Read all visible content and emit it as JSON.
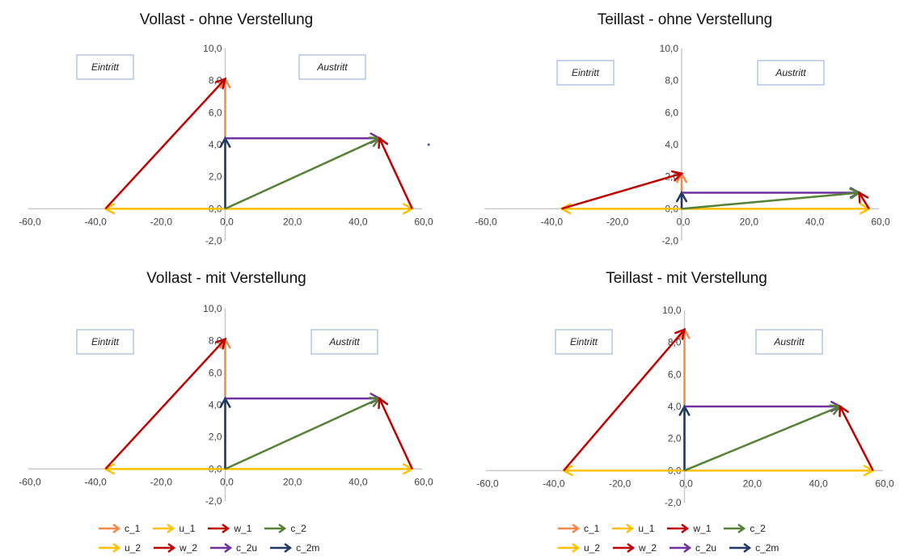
{
  "legend_items": [
    {
      "name": "c_1",
      "color": "#f4894b"
    },
    {
      "name": "u_1",
      "color": "#ffc000"
    },
    {
      "name": "w_1",
      "color": "#c00000"
    },
    {
      "name": "c_2",
      "color": "#548235"
    },
    {
      "name": "u_2",
      "color": "#ffc000"
    },
    {
      "name": "w_2",
      "color": "#c00000"
    },
    {
      "name": "c_2u",
      "color": "#7030a0"
    },
    {
      "name": "c_2m",
      "color": "#203864"
    }
  ],
  "chart_data": [
    {
      "type": "line",
      "title": "Vollast - ohne Verstellung",
      "xlim": [
        -60,
        60
      ],
      "ylim": [
        -2,
        10
      ],
      "xticks": [
        "-60,0",
        "-40,0",
        "-20,0",
        "0,0",
        "20,0",
        "40,0",
        "60,0"
      ],
      "yticks": [
        "-2,0",
        "0,0",
        "2,0",
        "4,0",
        "6,0",
        "8,0",
        "10,0"
      ],
      "annotations": [
        "Eintritt",
        "Austritt"
      ],
      "extra_point": [
        62,
        4
      ],
      "vectors": [
        {
          "name": "c_1",
          "from": [
            0,
            0
          ],
          "to": [
            0,
            8.1
          ]
        },
        {
          "name": "u_1",
          "from": [
            0,
            0
          ],
          "to": [
            -36.5,
            0
          ]
        },
        {
          "name": "w_1",
          "from": [
            -36.5,
            0
          ],
          "to": [
            0,
            8.1
          ]
        },
        {
          "name": "u_2",
          "from": [
            0,
            0
          ],
          "to": [
            57,
            0
          ]
        },
        {
          "name": "c_2m",
          "from": [
            0,
            0
          ],
          "to": [
            0,
            4.4
          ]
        },
        {
          "name": "c_2u",
          "from": [
            0,
            4.4
          ],
          "to": [
            47,
            4.4
          ]
        },
        {
          "name": "c_2",
          "from": [
            0,
            0
          ],
          "to": [
            47,
            4.4
          ]
        },
        {
          "name": "w_2",
          "from": [
            57,
            0
          ],
          "to": [
            47,
            4.4
          ]
        }
      ]
    },
    {
      "type": "line",
      "title": "Teillast - ohne Verstellung",
      "xlim": [
        -60,
        60
      ],
      "ylim": [
        -2,
        10
      ],
      "xticks": [
        "-60,0",
        "-40,0",
        "-20,0",
        "0,0",
        "20,0",
        "40,0",
        "60,0"
      ],
      "yticks": [
        "-2,0",
        "0,0",
        "2,0",
        "4,0",
        "6,0",
        "8,0",
        "10,0"
      ],
      "annotations": [
        "Eintritt",
        "Austritt"
      ],
      "vectors": [
        {
          "name": "c_1",
          "from": [
            0,
            0
          ],
          "to": [
            0,
            2.2
          ]
        },
        {
          "name": "u_1",
          "from": [
            0,
            0
          ],
          "to": [
            -36.5,
            0
          ]
        },
        {
          "name": "w_1",
          "from": [
            -36.5,
            0
          ],
          "to": [
            0,
            2.2
          ]
        },
        {
          "name": "u_2",
          "from": [
            0,
            0
          ],
          "to": [
            57,
            0
          ]
        },
        {
          "name": "c_2m",
          "from": [
            0,
            0
          ],
          "to": [
            0,
            1.0
          ]
        },
        {
          "name": "c_2u",
          "from": [
            0,
            1.0
          ],
          "to": [
            54,
            1.0
          ]
        },
        {
          "name": "c_2",
          "from": [
            0,
            0
          ],
          "to": [
            54,
            1.0
          ]
        },
        {
          "name": "w_2",
          "from": [
            57,
            0
          ],
          "to": [
            54,
            1.0
          ]
        }
      ]
    },
    {
      "type": "line",
      "title": "Vollast - mit Verstellung",
      "xlim": [
        -60,
        60
      ],
      "ylim": [
        -2,
        10
      ],
      "xticks": [
        "-60,0",
        "-40,0",
        "-20,0",
        "0,0",
        "20,0",
        "40,0",
        "60,0"
      ],
      "yticks": [
        "-2,0",
        "0,0",
        "2,0",
        "4,0",
        "6,0",
        "8,0",
        "10,0"
      ],
      "annotations": [
        "Eintritt",
        "Austritt"
      ],
      "vectors": [
        {
          "name": "c_1",
          "from": [
            0,
            0
          ],
          "to": [
            0,
            8.1
          ]
        },
        {
          "name": "u_1",
          "from": [
            0,
            0
          ],
          "to": [
            -36.5,
            0
          ]
        },
        {
          "name": "w_1",
          "from": [
            -36.5,
            0
          ],
          "to": [
            0,
            8.1
          ]
        },
        {
          "name": "u_2",
          "from": [
            0,
            0
          ],
          "to": [
            57,
            0
          ]
        },
        {
          "name": "c_2m",
          "from": [
            0,
            0
          ],
          "to": [
            0,
            4.4
          ]
        },
        {
          "name": "c_2u",
          "from": [
            0,
            4.4
          ],
          "to": [
            47,
            4.4
          ]
        },
        {
          "name": "c_2",
          "from": [
            0,
            0
          ],
          "to": [
            47,
            4.4
          ]
        },
        {
          "name": "w_2",
          "from": [
            57,
            0
          ],
          "to": [
            47,
            4.4
          ]
        }
      ]
    },
    {
      "type": "line",
      "title": "Teillast - mit Verstellung",
      "xlim": [
        -60,
        60
      ],
      "ylim": [
        -2,
        10
      ],
      "xticks": [
        "-60,0",
        "-40,0",
        "-20,0",
        "0,0",
        "20,0",
        "40,0",
        "60,0"
      ],
      "yticks": [
        "-2,0",
        "0,0",
        "2,0",
        "4,0",
        "6,0",
        "8,0",
        "10,0"
      ],
      "annotations": [
        "Eintritt",
        "Austritt"
      ],
      "vectors": [
        {
          "name": "c_1",
          "from": [
            0,
            0
          ],
          "to": [
            0,
            8.8
          ]
        },
        {
          "name": "u_1",
          "from": [
            0,
            0
          ],
          "to": [
            -36.5,
            0
          ]
        },
        {
          "name": "w_1",
          "from": [
            -36.5,
            0
          ],
          "to": [
            0,
            8.8
          ]
        },
        {
          "name": "u_2",
          "from": [
            0,
            0
          ],
          "to": [
            57,
            0
          ]
        },
        {
          "name": "c_2m",
          "from": [
            0,
            0
          ],
          "to": [
            0,
            4.0
          ]
        },
        {
          "name": "c_2u",
          "from": [
            0,
            4.0
          ],
          "to": [
            47,
            4.0
          ]
        },
        {
          "name": "c_2",
          "from": [
            0,
            0
          ],
          "to": [
            47,
            4.0
          ]
        },
        {
          "name": "w_2",
          "from": [
            57,
            0
          ],
          "to": [
            47,
            4.0
          ]
        }
      ]
    }
  ]
}
